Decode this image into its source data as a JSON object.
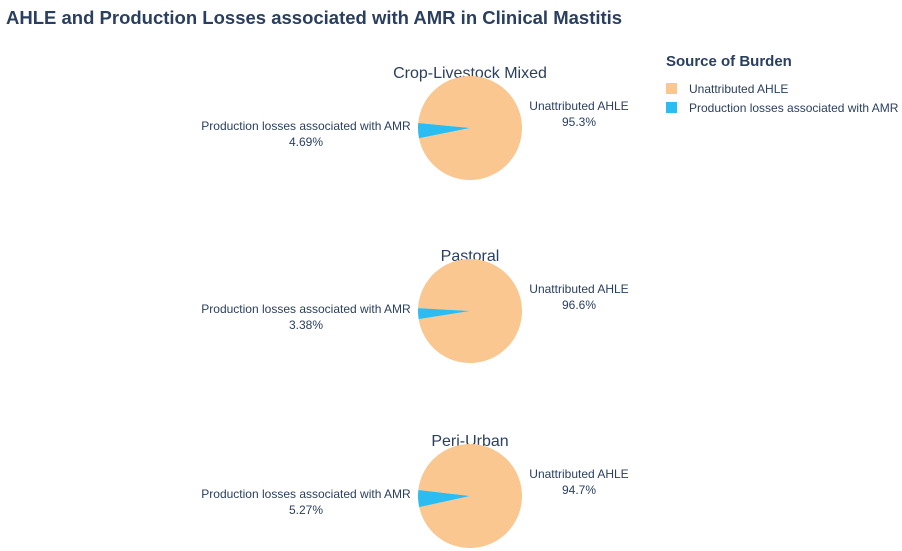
{
  "title": "AHLE and Production Losses associated with AMR in Clinical Mastitis",
  "legend": {
    "title": "Source of Burden",
    "items": [
      {
        "label": "Unattributed AHLE",
        "color": "#f9c78f"
      },
      {
        "label": "Production losses associated with AMR",
        "color": "#2bbcf2"
      }
    ]
  },
  "chart_data": [
    {
      "type": "pie",
      "title": "Crop-Livestock Mixed",
      "slices": [
        {
          "label": "Unattributed AHLE",
          "value": 95.3,
          "text": "95.3%",
          "color": "#f9c78f"
        },
        {
          "label": "Production losses associated with AMR",
          "value": 4.69,
          "text": "4.69%",
          "color": "#2bbcf2"
        }
      ]
    },
    {
      "type": "pie",
      "title": "Pastoral",
      "slices": [
        {
          "label": "Unattributed AHLE",
          "value": 96.6,
          "text": "96.6%",
          "color": "#f9c78f"
        },
        {
          "label": "Production losses associated with AMR",
          "value": 3.38,
          "text": "3.38%",
          "color": "#2bbcf2"
        }
      ]
    },
    {
      "type": "pie",
      "title": "Peri-Urban",
      "slices": [
        {
          "label": "Unattributed AHLE",
          "value": 94.7,
          "text": "94.7%",
          "color": "#f9c78f"
        },
        {
          "label": "Production losses associated with AMR",
          "value": 5.27,
          "text": "5.27%",
          "color": "#2bbcf2"
        }
      ]
    }
  ]
}
